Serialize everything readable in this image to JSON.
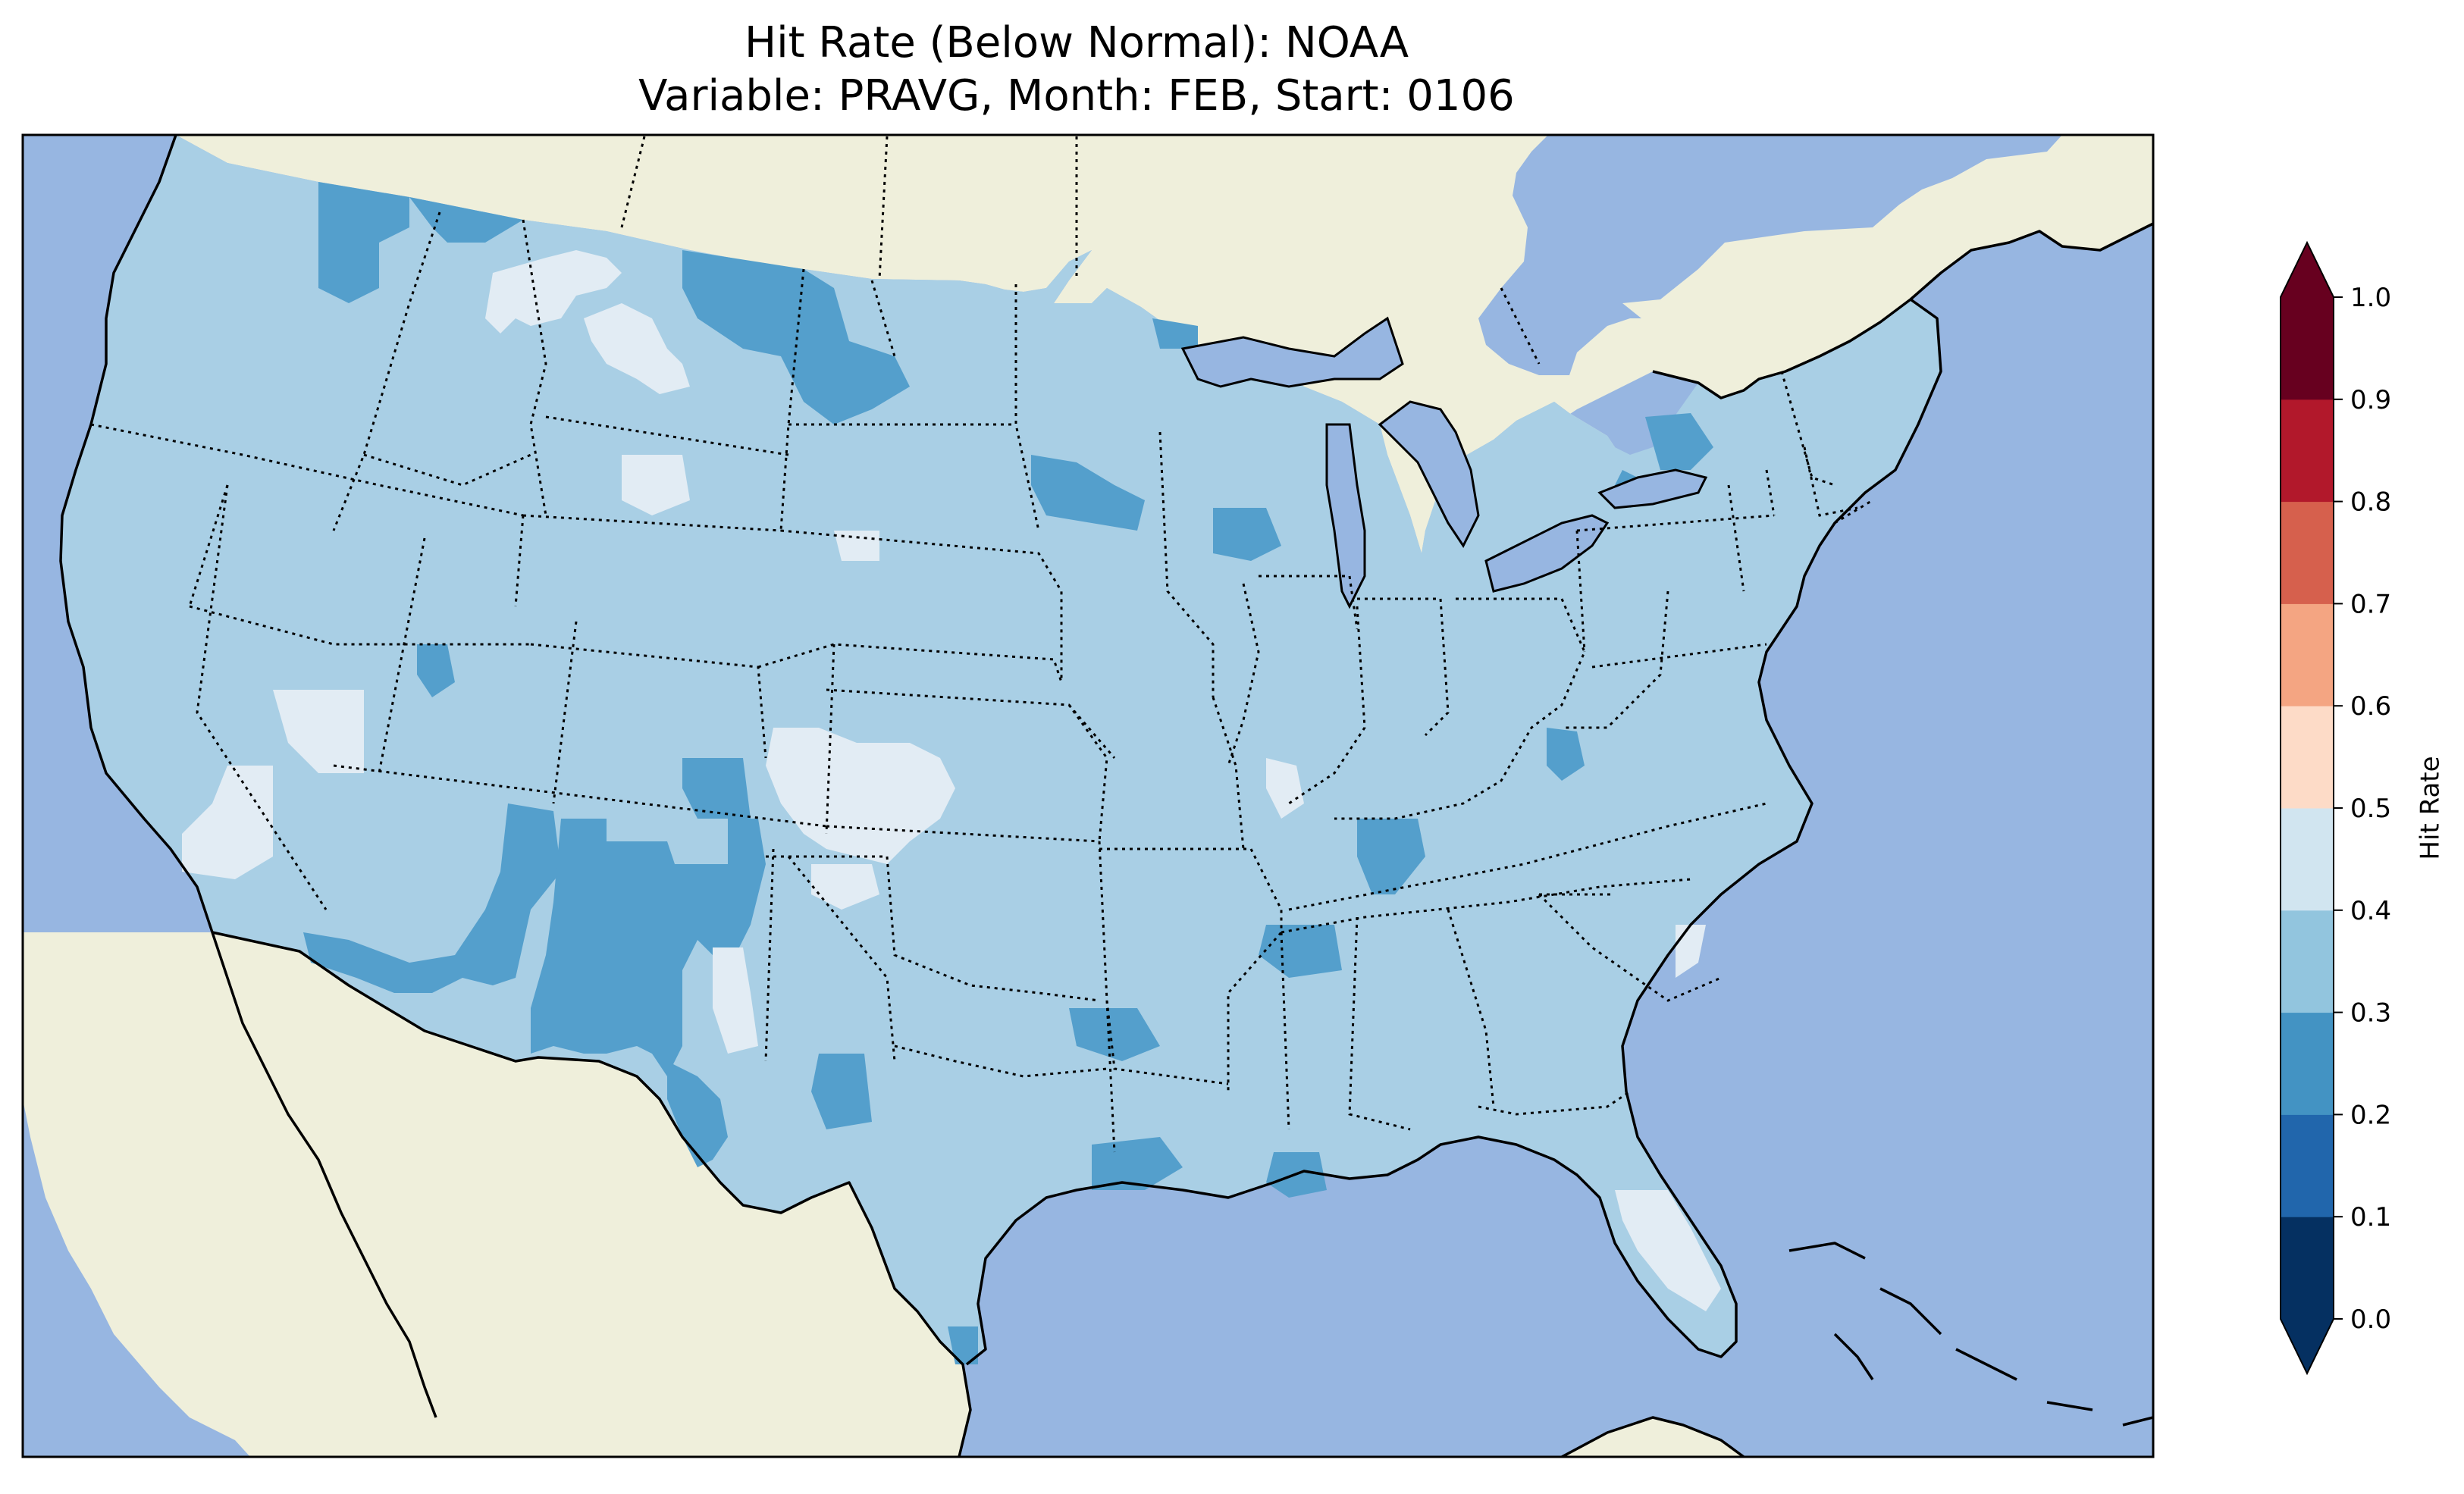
{
  "title": {
    "line1": "Hit Rate (Below Normal): NOAA",
    "line2": "Variable: PRAVG, Month: FEB, Start: 0106"
  },
  "colors": {
    "ocean": "#97b6e1",
    "land": "#efefdb",
    "lake": "#97b6e1"
  },
  "colorbar": {
    "label": "Hit Rate",
    "ticks": [
      "0.0",
      "0.1",
      "0.2",
      "0.3",
      "0.4",
      "0.5",
      "0.6",
      "0.7",
      "0.8",
      "0.9",
      "1.0"
    ],
    "levels": [
      0.0,
      0.1,
      0.2,
      0.3,
      0.4,
      0.5,
      0.6,
      0.7,
      0.8,
      0.9,
      1.0
    ],
    "colors": [
      "#053061",
      "#2166ac",
      "#4393c3",
      "#92c5de",
      "#d1e5f0",
      "#fddbc7",
      "#f4a582",
      "#d6604d",
      "#b2182b",
      "#67001f"
    ],
    "extend_under": "#053061",
    "extend_over": "#67001f"
  },
  "map_colors": {
    "base": "#a9cfe5",
    "low": "#549fcc",
    "high": "#e2ecf4"
  }
}
